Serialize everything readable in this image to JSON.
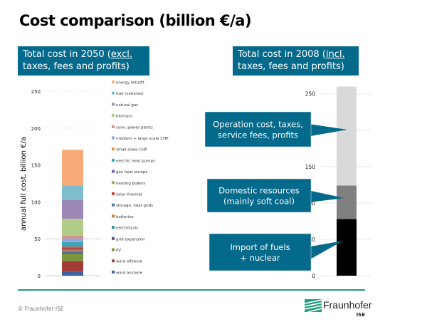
{
  "page": {
    "title": "Cost comparison (billion €/a)",
    "left_header": {
      "pre": "Total cost in 2050 (",
      "underlined": "excl.",
      "post": " taxes, fees and profits)"
    },
    "right_header": {
      "pre": "Total cost in 2008 (",
      "underlined": "incl.",
      "post": " taxes, fees and profits)"
    },
    "copyright": "© Fraunhofer ISE",
    "logo_text": "Fraunhofer",
    "logo_sub": "ISE",
    "accent_color": "#036a8c",
    "footer_color": "#1f9e7e"
  },
  "chart_data": [
    {
      "type": "bar",
      "stacked": true,
      "title": "Total cost in 2050 (excl. taxes, fees and profits)",
      "ylabel": "annual full cost, billion €/a",
      "ylim": [
        0,
        250
      ],
      "yticks": [
        0,
        50,
        100,
        150,
        200,
        250
      ],
      "grid": true,
      "legend_position": "right",
      "series": [
        {
          "name": "wind onshore",
          "value": 5.5,
          "color": "#3d64a0"
        },
        {
          "name": "wind offshore",
          "value": 14.5,
          "color": "#a33b38"
        },
        {
          "name": "PV",
          "value": 10,
          "color": "#7a963e"
        },
        {
          "name": "grid expansion",
          "value": 1.5,
          "color": "#614883"
        },
        {
          "name": "electrolysis",
          "value": 2,
          "color": "#2e8aa1"
        },
        {
          "name": "batteries",
          "value": 1,
          "color": "#d07a30"
        },
        {
          "name": "storage, heat grids",
          "value": 1.5,
          "color": "#4a74b4"
        },
        {
          "name": "solar thermal",
          "value": 2.5,
          "color": "#c0403c"
        },
        {
          "name": "heating boilers",
          "value": 1,
          "color": "#8fb050"
        },
        {
          "name": "gas heat pumps",
          "value": 1,
          "color": "#775ba0"
        },
        {
          "name": "electric heat pumps",
          "value": 5,
          "color": "#36a6c4"
        },
        {
          "name": "small scale CHP",
          "value": 1,
          "color": "#f08c3c"
        },
        {
          "name": "medium + large scale CHP",
          "value": 4,
          "color": "#8aa6d6"
        },
        {
          "name": "conv. power plants",
          "value": 3.5,
          "color": "#d98c8a"
        },
        {
          "name": "biomass",
          "value": 23,
          "color": "#b0cc88"
        },
        {
          "name": "natural gas",
          "value": 25.5,
          "color": "#9c88b8"
        },
        {
          "name": "fuel (vehicles)",
          "value": 20,
          "color": "#7ebccc"
        },
        {
          "name": "energy retrofit",
          "value": 48,
          "color": "#f8aa78"
        }
      ]
    },
    {
      "type": "bar",
      "stacked": true,
      "title": "Total cost in 2008 (incl. taxes, fees and profits)",
      "ylim": [
        0,
        250
      ],
      "yticks": [
        0,
        50,
        100,
        150,
        200,
        250
      ],
      "grid": true,
      "series": [
        {
          "name": "Import of fuels + nuclear",
          "value": 78,
          "color": "#000000"
        },
        {
          "name": "Domestic resources (mainly soft coal)",
          "value": 46,
          "color": "#808080"
        },
        {
          "name": "Operation cost, taxes, service fees, profits",
          "value": 136,
          "color": "#d9d9d9"
        }
      ]
    }
  ]
}
